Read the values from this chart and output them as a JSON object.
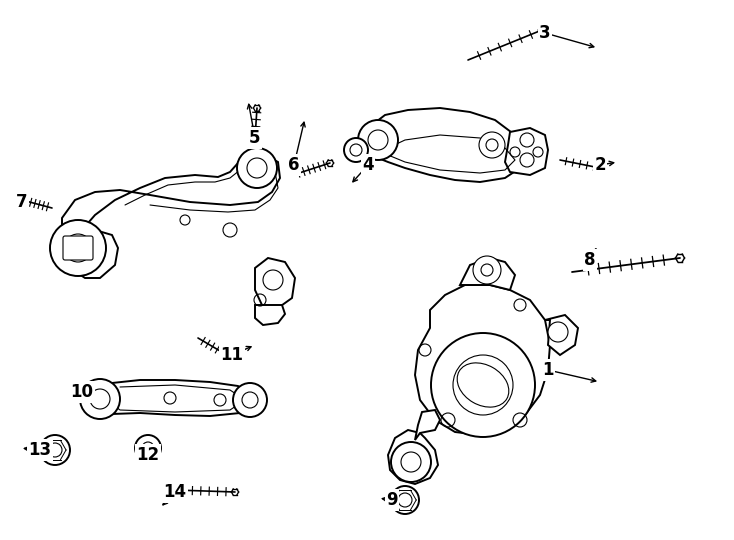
{
  "bg_color": "#ffffff",
  "line_color": "#000000",
  "figsize": [
    7.34,
    5.4
  ],
  "dpi": 100,
  "lw_main": 1.4,
  "lw_thin": 0.8,
  "lw_thick": 2.0
}
